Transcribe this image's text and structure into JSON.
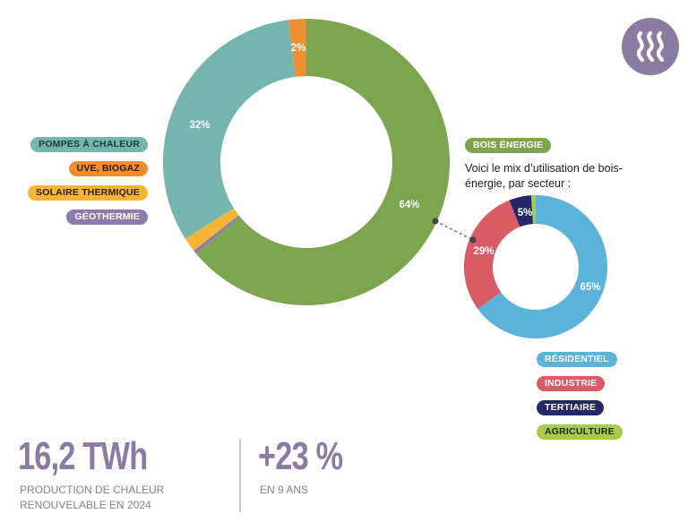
{
  "colors": {
    "pompes": "#74b5ad",
    "uve": "#ef8e2e",
    "solaire": "#f5b433",
    "geothermie": "#8d7bab",
    "bois": "#7da44e",
    "residentiel": "#5cb3da",
    "industrie": "#d95b66",
    "tertiaire": "#232866",
    "agriculture": "#a8cc4a",
    "accent": "#8b7ba3"
  },
  "legend_main": [
    {
      "label": "POMPES À CHALEUR",
      "color": "#74b5ad",
      "text_color": "#1f3b38"
    },
    {
      "label": "UVE, BIOGAZ",
      "color": "#ef8e2e",
      "text_color": "#2b1a08"
    },
    {
      "label": "SOLAIRE THERMIQUE",
      "color": "#f5b433",
      "text_color": "#2b2008"
    },
    {
      "label": "GÉOTHERMIE",
      "color": "#8d7bab",
      "text_color": "#ffffff"
    }
  ],
  "bois_label": "BOIS ÉNERGIE",
  "bois_caption": "Voici le mix d’utilisation de bois-énergie, par secteur :",
  "legend_sector": [
    {
      "label": "RÉSIDENTIEL",
      "color": "#5cb3da",
      "text_color": "#ffffff"
    },
    {
      "label": "INDUSTRIE",
      "color": "#d95b66",
      "text_color": "#ffffff"
    },
    {
      "label": "TERTIAIRE",
      "color": "#232866",
      "text_color": "#ffffff"
    },
    {
      "label": "AGRICULTURE",
      "color": "#a8cc4a",
      "text_color": "#1d2a08"
    }
  ],
  "stats": {
    "production_value": "16,2 TWh",
    "production_label_1": "PRODUCTION DE CHALEUR",
    "production_label_2": "RENOUVELABLE EN 2024",
    "growth_value": "+23 %",
    "growth_label": "EN 9 ANS"
  },
  "icons": {
    "top_right": "heat-waves-icon"
  },
  "chart_data": [
    {
      "type": "pie",
      "variant": "donut",
      "title": "Production de chaleur renouvelable 2024 par filière",
      "categories": [
        "Bois énergie",
        "Géothermie",
        "Solaire thermique",
        "Pompes à chaleur",
        "UVE, biogaz"
      ],
      "values": [
        64,
        0.4,
        1.6,
        32,
        2
      ],
      "labels_shown": {
        "Bois énergie": "64%",
        "Pompes à chaleur": "32%",
        "UVE, biogaz": "2%"
      },
      "colors": [
        "#7da44e",
        "#8d7bab",
        "#f5b433",
        "#74b5ad",
        "#ef8e2e"
      ],
      "start": "12 o'clock, clockwise"
    },
    {
      "type": "pie",
      "variant": "donut",
      "title": "Mix d’utilisation de bois-énergie par secteur",
      "categories": [
        "Résidentiel",
        "Industrie",
        "Tertiaire",
        "Agriculture"
      ],
      "values": [
        65,
        29,
        5,
        1
      ],
      "labels_shown": {
        "Résidentiel": "65%",
        "Industrie": "29%",
        "Tertiaire": "5%"
      },
      "colors": [
        "#5cb3da",
        "#d95b66",
        "#232866",
        "#a8cc4a"
      ],
      "start": "12 o'clock, clockwise"
    }
  ]
}
